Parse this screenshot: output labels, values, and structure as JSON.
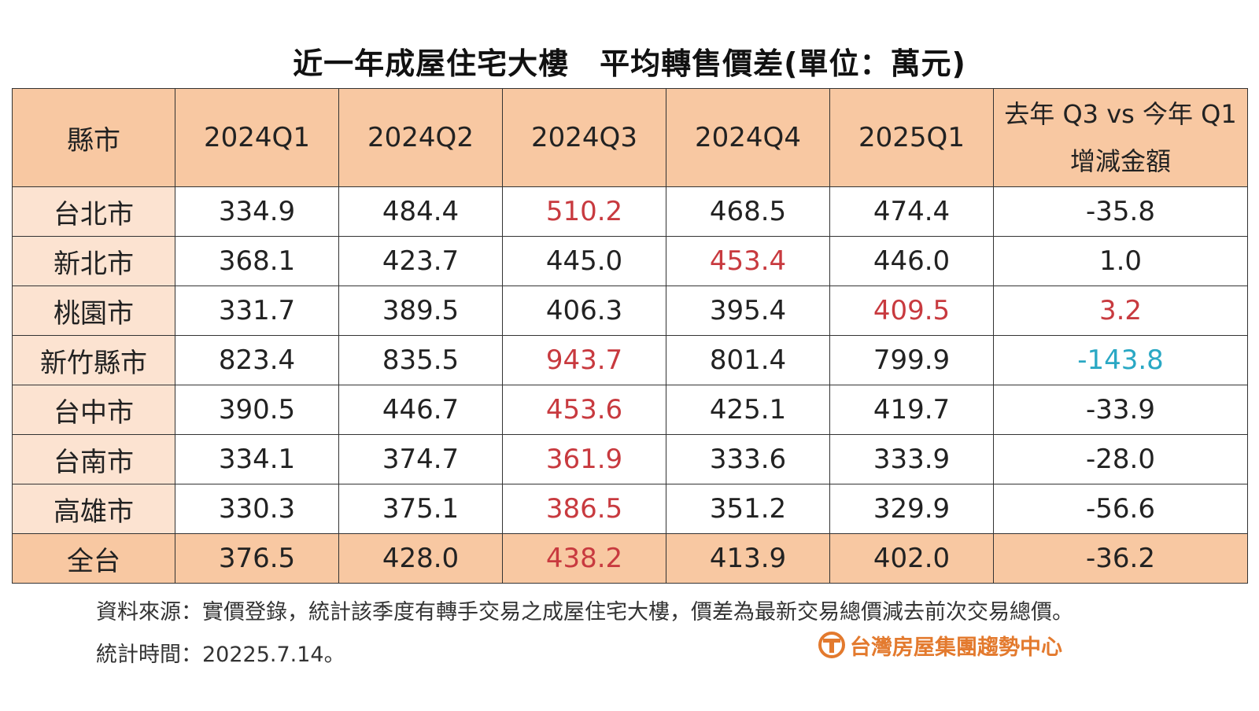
{
  "chart_data": {
    "type": "table",
    "title": "近一年成屋住宅大樓　平均轉售價差(單位：萬元)",
    "columns": [
      "縣市",
      "2024Q1",
      "2024Q2",
      "2024Q3",
      "2024Q4",
      "2025Q1",
      "去年 Q3 vs 今年 Q1",
      "增減金額"
    ],
    "rows": [
      {
        "city": "台北市",
        "values": [
          "334.9",
          "484.4",
          "510.2",
          "468.5",
          "474.4"
        ],
        "diff": "-35.8",
        "highlight": [
          2
        ],
        "diff_color": "normal"
      },
      {
        "city": "新北市",
        "values": [
          "368.1",
          "423.7",
          "445.0",
          "453.4",
          "446.0"
        ],
        "diff": "1.0",
        "highlight": [
          3
        ],
        "diff_color": "normal"
      },
      {
        "city": "桃園市",
        "values": [
          "331.7",
          "389.5",
          "406.3",
          "395.4",
          "409.5"
        ],
        "diff": "3.2",
        "highlight": [
          4
        ],
        "diff_color": "red"
      },
      {
        "city": "新竹縣市",
        "values": [
          "823.4",
          "835.5",
          "943.7",
          "801.4",
          "799.9"
        ],
        "diff": "-143.8",
        "highlight": [
          2
        ],
        "diff_color": "blue"
      },
      {
        "city": "台中市",
        "values": [
          "390.5",
          "446.7",
          "453.6",
          "425.1",
          "419.7"
        ],
        "diff": "-33.9",
        "highlight": [
          2
        ],
        "diff_color": "normal"
      },
      {
        "city": "台南市",
        "values": [
          "334.1",
          "374.7",
          "361.9",
          "333.6",
          "333.9"
        ],
        "diff": "-28.0",
        "highlight": [
          2
        ],
        "diff_color": "normal"
      },
      {
        "city": "高雄市",
        "values": [
          "330.3",
          "375.1",
          "386.5",
          "351.2",
          "329.9"
        ],
        "diff": "-56.6",
        "highlight": [
          2
        ],
        "diff_color": "normal"
      },
      {
        "city": "全台",
        "values": [
          "376.5",
          "428.0",
          "438.2",
          "413.9",
          "402.0"
        ],
        "diff": "-36.2",
        "highlight": [
          2
        ],
        "diff_color": "normal",
        "is_total": true
      }
    ],
    "colors": {
      "header_bg": "#f8c8a2",
      "city_bg": "#fce3d1",
      "highlight_red": "#c83a3f",
      "highlight_blue": "#2aa8c4"
    }
  },
  "footer": {
    "source": "資料來源：實價登錄，統計該季度有轉手交易之成屋住宅大樓，價差為最新交易總價減去前次交易總價。",
    "time": "統計時間：20225.7.14。",
    "logo_text": "台灣房屋集團趨勢中心",
    "logo_icon": "t-logo-icon"
  }
}
